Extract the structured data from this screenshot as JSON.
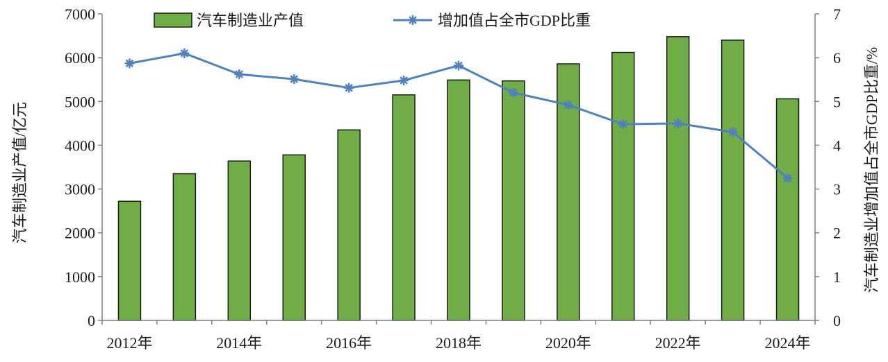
{
  "chart_data": {
    "type": "bar+line",
    "x": [
      "2012",
      "2013",
      "2014",
      "2015",
      "2016",
      "2017",
      "2018",
      "2019",
      "2020",
      "2021",
      "2022",
      "2023",
      "2024"
    ],
    "x_tick_labels": [
      "2012年",
      "2014年",
      "2016年",
      "2018年",
      "2020年",
      "2022年",
      "2024年"
    ],
    "x_tick_positions": [
      "2012",
      "2014",
      "2016",
      "2018",
      "2020",
      "2022",
      "2024"
    ],
    "series": [
      {
        "name": "汽车制造业产值",
        "type": "bar",
        "axis": "left",
        "color": "#70ad47",
        "values": [
          2720,
          3350,
          3640,
          3780,
          4350,
          5150,
          5490,
          5470,
          5860,
          6120,
          6480,
          6400,
          5060
        ]
      },
      {
        "name": "增加值占全市GDP比重",
        "type": "line",
        "axis": "right",
        "color": "#4f81bd",
        "marker": "asterisk",
        "values": [
          5.87,
          6.1,
          5.62,
          5.51,
          5.31,
          5.48,
          5.82,
          5.2,
          4.92,
          4.48,
          4.5,
          4.3,
          3.25
        ]
      }
    ],
    "y_left": {
      "label": "汽车制造业产值/亿元",
      "min": 0,
      "max": 7000,
      "step": 1000,
      "ticks": [
        "0",
        "1000",
        "2000",
        "3000",
        "4000",
        "5000",
        "6000",
        "7000"
      ]
    },
    "y_right": {
      "label": "汽车制造业增加值占全市GDP比重/%",
      "min": 0,
      "max": 7,
      "step": 1,
      "ticks": [
        "0",
        "1",
        "2",
        "3",
        "4",
        "5",
        "6",
        "7"
      ]
    },
    "legend_position": "top",
    "grid": false
  }
}
